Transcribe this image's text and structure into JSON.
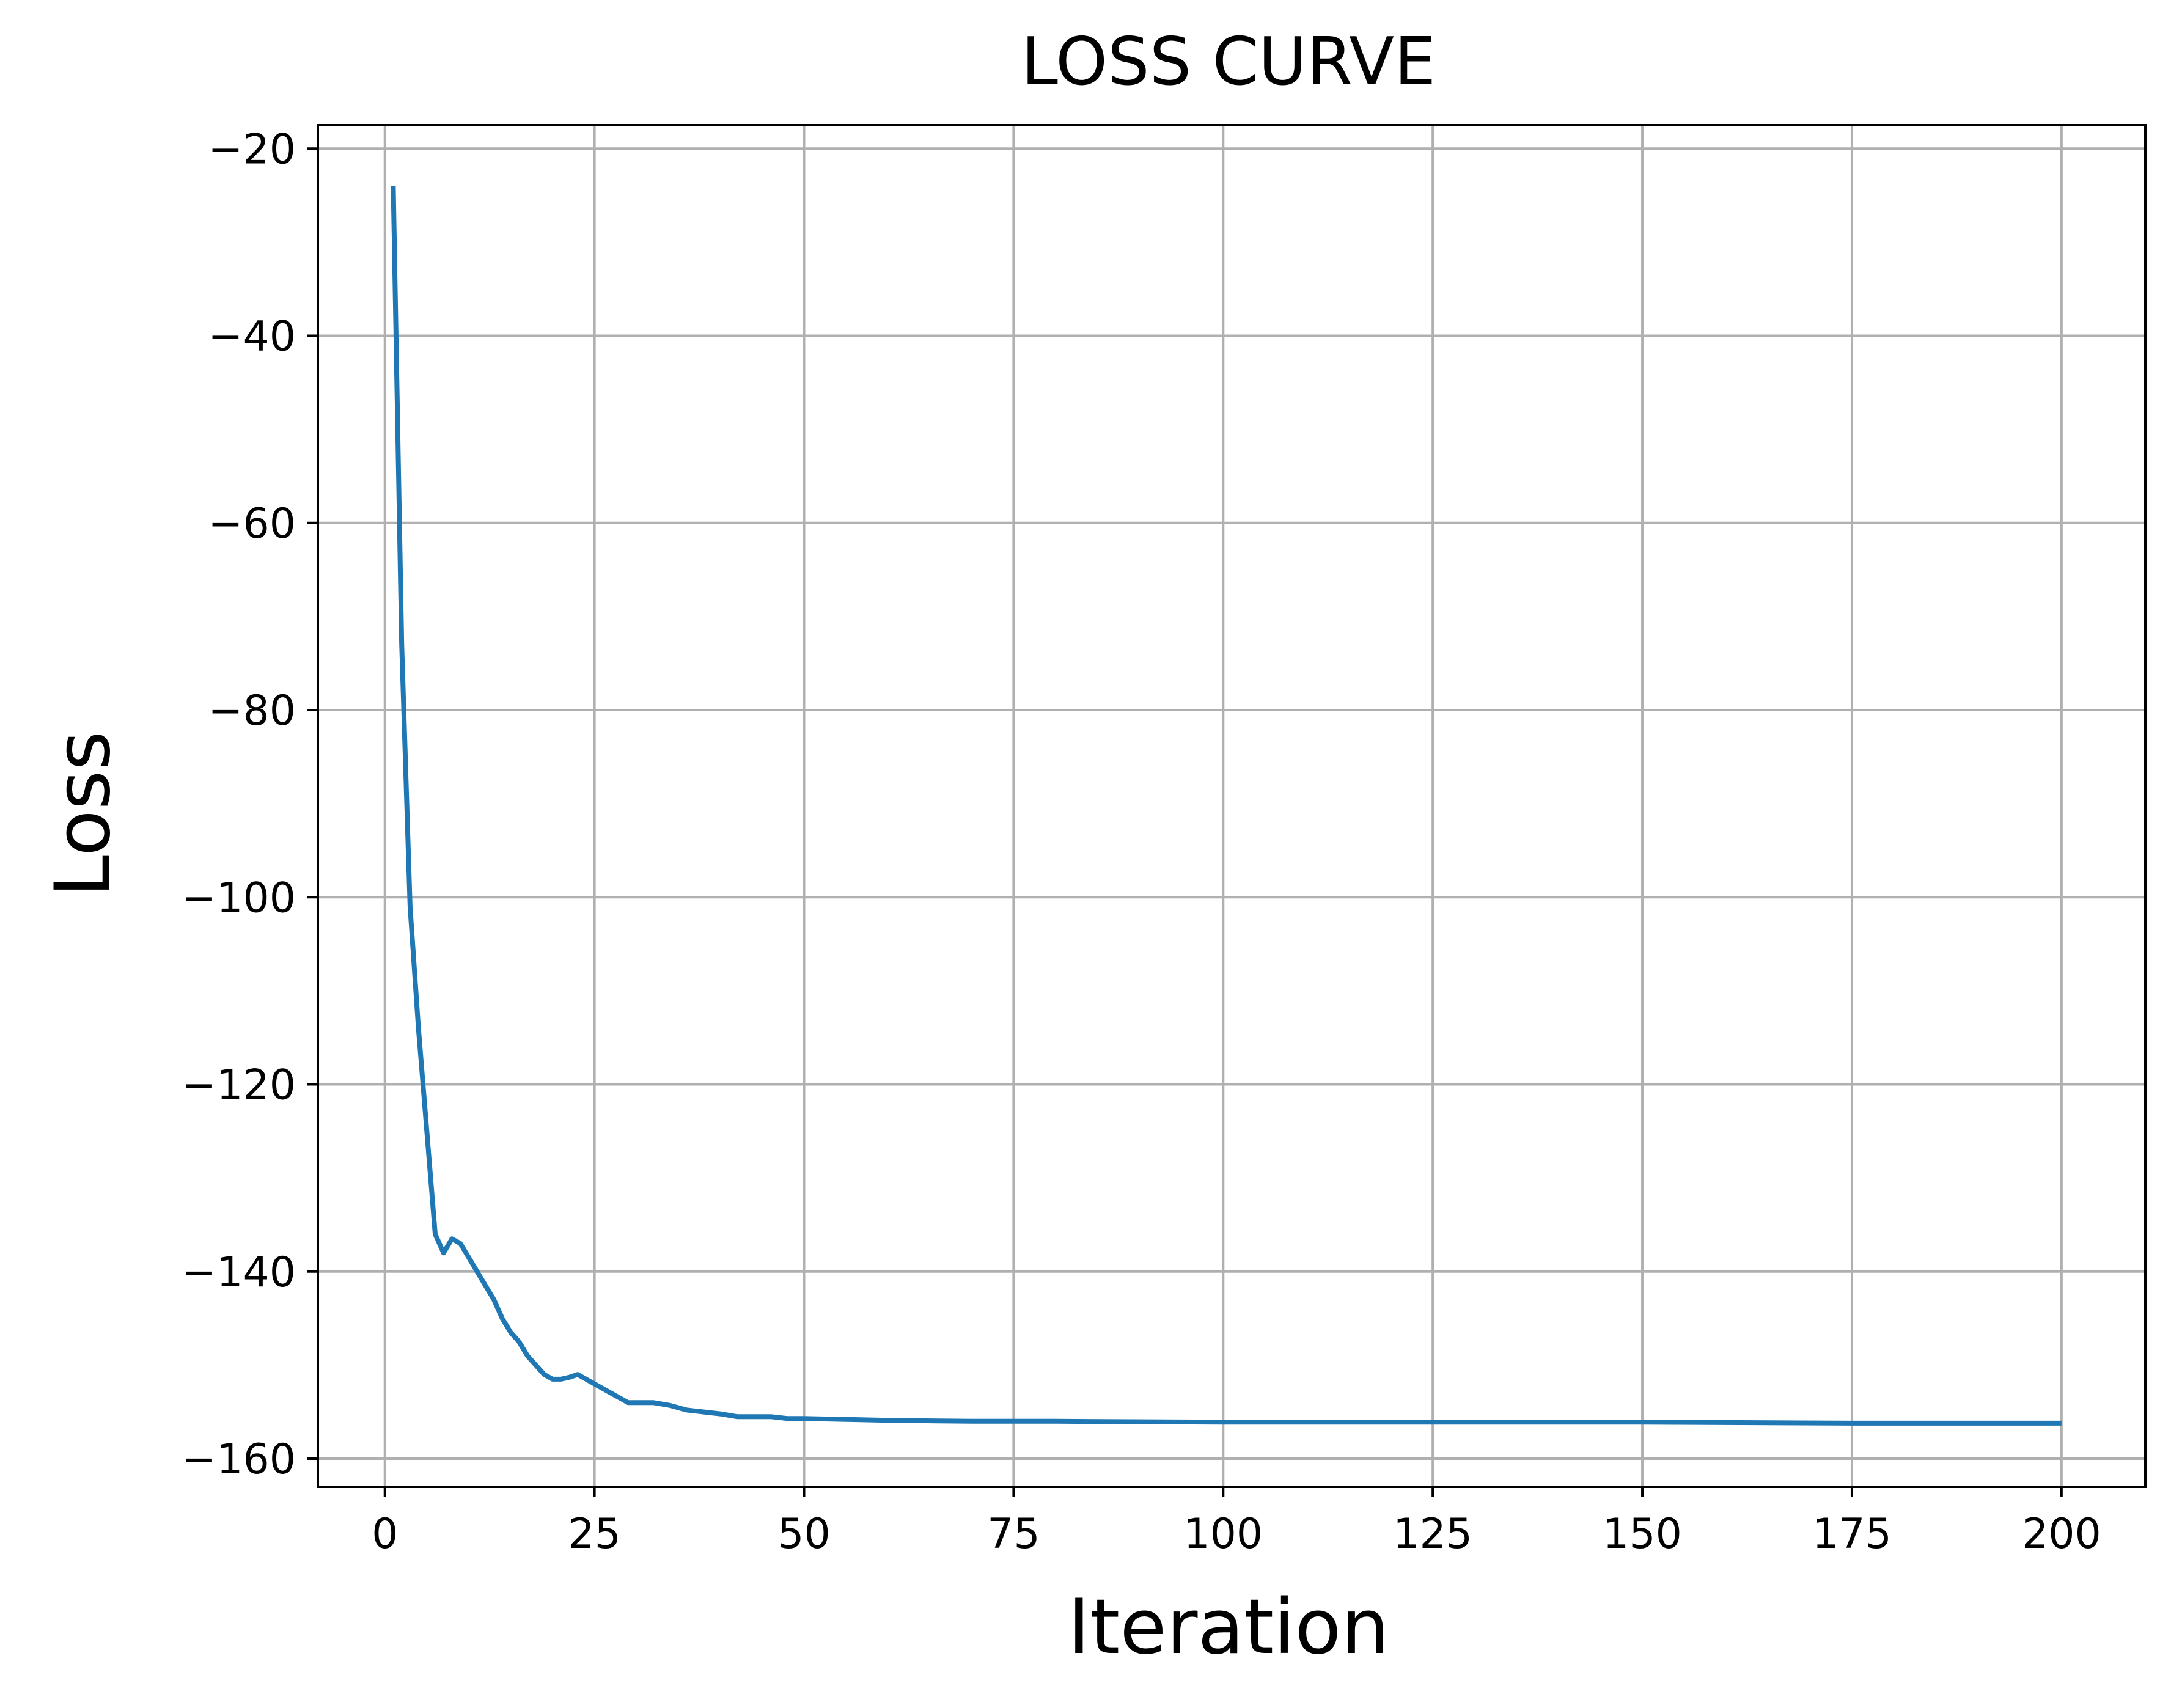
{
  "chart_data": {
    "type": "line",
    "title": "LOSS CURVE",
    "xlabel": "Iteration",
    "ylabel": "Loss",
    "xlim": [
      -8,
      210
    ],
    "ylim": [
      -163,
      -17.5
    ],
    "xticks": [
      0,
      25,
      50,
      75,
      100,
      125,
      150,
      175,
      200
    ],
    "yticks": [
      -20,
      -40,
      -60,
      -80,
      -100,
      -120,
      -140,
      -160
    ],
    "grid": true,
    "legend": "none",
    "colors": {
      "line": "#1f77b4",
      "grid": "#b0b0b0",
      "axes": "#000000"
    },
    "series": [
      {
        "x": [
          1,
          2,
          3,
          4,
          5,
          6,
          7,
          8,
          9,
          10,
          11,
          12,
          13,
          14,
          15,
          16,
          17,
          18,
          19,
          20,
          21,
          22,
          23,
          24,
          25,
          26,
          27,
          28,
          29,
          30,
          32,
          34,
          36,
          38,
          40,
          42,
          44,
          46,
          48,
          50,
          55,
          60,
          70,
          80,
          100,
          125,
          150,
          175,
          200
        ],
        "y": [
          -24,
          -73,
          -101,
          -114,
          -125,
          -136,
          -138,
          -136.5,
          -137,
          -138.5,
          -140,
          -141.5,
          -143,
          -145,
          -146.5,
          -147.5,
          -149,
          -150,
          -151,
          -151.5,
          -151.5,
          -151.3,
          -151,
          -151.5,
          -152,
          -152.5,
          -153,
          -153.5,
          -154,
          -154,
          -154,
          -154.3,
          -154.8,
          -155,
          -155.2,
          -155.5,
          -155.5,
          -155.5,
          -155.7,
          -155.7,
          -155.8,
          -155.9,
          -156,
          -156,
          -156.1,
          -156.1,
          -156.1,
          -156.2,
          -156.2
        ]
      }
    ]
  }
}
